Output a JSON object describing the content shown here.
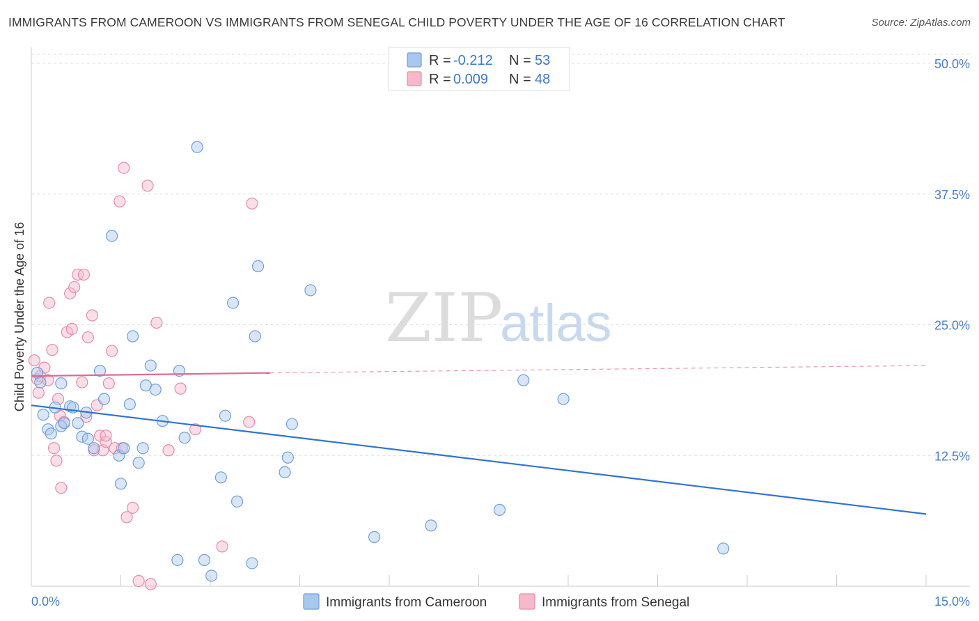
{
  "header": {
    "title": "IMMIGRANTS FROM CAMEROON VS IMMIGRANTS FROM SENEGAL CHILD POVERTY UNDER THE AGE OF 16 CORRELATION CHART",
    "source": "Source: ZipAtlas.com"
  },
  "watermark": {
    "zip": "ZIP",
    "atlas": "atlas"
  },
  "legend": {
    "cameroon": {
      "r_label": "R = ",
      "r_value": "-0.212",
      "n_label": "N = ",
      "n_value": "53"
    },
    "senegal": {
      "r_label": "R = ",
      "r_value": "0.009",
      "n_label": "N = ",
      "n_value": "48"
    }
  },
  "colors": {
    "cameroon_fill": "#a9c8ee",
    "cameroon_stroke": "#6f9fdb",
    "cameroon_line": "#2f73d0",
    "senegal_fill": "#f6b9cc",
    "senegal_stroke": "#e88aa8",
    "senegal_line": "#e06a92",
    "grid": "#dddddd",
    "tick_label": "#4a7fc8"
  },
  "chart_data": {
    "type": "scatter",
    "title": "IMMIGRANTS FROM CAMEROON VS IMMIGRANTS FROM SENEGAL CHILD POVERTY UNDER THE AGE OF 16 CORRELATION CHART",
    "xlabel": "",
    "ylabel": "Child Poverty Under the Age of 16",
    "xlim": [
      0,
      15
    ],
    "ylim": [
      0,
      51
    ],
    "x_tick_labels": [
      "0.0%",
      "15.0%"
    ],
    "y_ticks": [
      12.5,
      25.0,
      37.5,
      50.0
    ],
    "y_tick_labels": [
      "12.5%",
      "25.0%",
      "37.5%",
      "50.0%"
    ],
    "grid": true,
    "legend_position": "top-center",
    "series": [
      {
        "name": "Immigrants from Cameroon",
        "points": [
          [
            0.1,
            20.4
          ],
          [
            0.15,
            19.5
          ],
          [
            0.2,
            16.4
          ],
          [
            0.28,
            15.0
          ],
          [
            0.33,
            14.6
          ],
          [
            0.4,
            17.1
          ],
          [
            0.5,
            15.3
          ],
          [
            0.55,
            15.6
          ],
          [
            0.65,
            17.2
          ],
          [
            0.7,
            17.1
          ],
          [
            0.78,
            15.6
          ],
          [
            0.85,
            14.3
          ],
          [
            0.92,
            16.6
          ],
          [
            0.95,
            14.1
          ],
          [
            1.05,
            13.2
          ],
          [
            1.15,
            20.6
          ],
          [
            1.22,
            17.9
          ],
          [
            1.35,
            33.5
          ],
          [
            1.47,
            12.5
          ],
          [
            1.5,
            9.8
          ],
          [
            1.55,
            13.2
          ],
          [
            1.65,
            17.4
          ],
          [
            1.7,
            23.9
          ],
          [
            1.8,
            11.8
          ],
          [
            1.87,
            13.2
          ],
          [
            1.92,
            19.2
          ],
          [
            2.0,
            21.1
          ],
          [
            2.08,
            18.8
          ],
          [
            2.2,
            15.8
          ],
          [
            2.45,
            2.5
          ],
          [
            2.48,
            20.6
          ],
          [
            2.57,
            14.2
          ],
          [
            2.78,
            42.0
          ],
          [
            2.9,
            2.5
          ],
          [
            3.02,
            1.0
          ],
          [
            3.18,
            10.4
          ],
          [
            3.25,
            16.3
          ],
          [
            3.38,
            27.1
          ],
          [
            3.45,
            8.1
          ],
          [
            3.7,
            2.2
          ],
          [
            3.75,
            23.9
          ],
          [
            3.8,
            30.6
          ],
          [
            4.25,
            10.9
          ],
          [
            4.3,
            12.3
          ],
          [
            4.37,
            15.5
          ],
          [
            4.68,
            28.3
          ],
          [
            5.75,
            4.7
          ],
          [
            6.7,
            5.8
          ],
          [
            7.85,
            7.3
          ],
          [
            8.25,
            19.7
          ],
          [
            8.92,
            17.9
          ],
          [
            11.6,
            3.6
          ],
          [
            0.5,
            19.4
          ]
        ],
        "trend": {
          "x": [
            0,
            15
          ],
          "y": [
            17.3,
            6.9
          ]
        }
      },
      {
        "name": "Immigrants from Senegal",
        "points": [
          [
            0.05,
            21.6
          ],
          [
            0.1,
            19.8
          ],
          [
            0.12,
            18.5
          ],
          [
            0.15,
            20.1
          ],
          [
            0.22,
            20.9
          ],
          [
            0.28,
            19.7
          ],
          [
            0.3,
            27.1
          ],
          [
            0.35,
            22.6
          ],
          [
            0.38,
            13.2
          ],
          [
            0.42,
            12.0
          ],
          [
            0.45,
            17.9
          ],
          [
            0.48,
            16.3
          ],
          [
            0.5,
            9.4
          ],
          [
            0.55,
            15.7
          ],
          [
            0.6,
            24.3
          ],
          [
            0.65,
            28.0
          ],
          [
            0.68,
            24.6
          ],
          [
            0.72,
            28.6
          ],
          [
            0.78,
            29.8
          ],
          [
            0.85,
            19.5
          ],
          [
            0.88,
            29.8
          ],
          [
            0.92,
            16.2
          ],
          [
            0.95,
            23.8
          ],
          [
            1.02,
            25.9
          ],
          [
            1.05,
            13.0
          ],
          [
            1.1,
            17.3
          ],
          [
            1.15,
            14.4
          ],
          [
            1.2,
            13.0
          ],
          [
            1.25,
            13.8
          ],
          [
            1.3,
            19.4
          ],
          [
            1.35,
            22.5
          ],
          [
            1.4,
            13.2
          ],
          [
            1.48,
            36.8
          ],
          [
            1.52,
            13.2
          ],
          [
            1.55,
            40.0
          ],
          [
            1.6,
            6.6
          ],
          [
            1.7,
            7.5
          ],
          [
            1.8,
            0.5
          ],
          [
            1.95,
            38.3
          ],
          [
            2.0,
            0.2
          ],
          [
            2.1,
            25.2
          ],
          [
            2.3,
            13.0
          ],
          [
            2.5,
            18.9
          ],
          [
            2.75,
            15.0
          ],
          [
            3.2,
            3.8
          ],
          [
            3.65,
            15.7
          ],
          [
            3.7,
            36.6
          ],
          [
            1.25,
            14.4
          ]
        ],
        "trend_solid": {
          "x": [
            0,
            4.0
          ],
          "y": [
            20.1,
            20.4
          ]
        },
        "trend_dashed": {
          "x": [
            4.0,
            15
          ],
          "y": [
            20.4,
            21.1
          ]
        }
      }
    ]
  }
}
